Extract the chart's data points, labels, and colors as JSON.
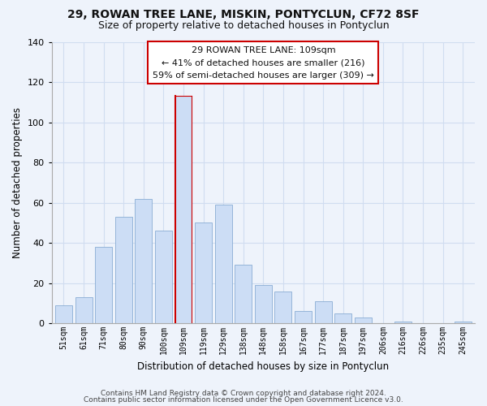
{
  "title": "29, ROWAN TREE LANE, MISKIN, PONTYCLUN, CF72 8SF",
  "subtitle": "Size of property relative to detached houses in Pontyclun",
  "xlabel": "Distribution of detached houses by size in Pontyclun",
  "ylabel": "Number of detached properties",
  "footer_line1": "Contains HM Land Registry data © Crown copyright and database right 2024.",
  "footer_line2": "Contains public sector information licensed under the Open Government Licence v3.0.",
  "bar_labels": [
    "51sqm",
    "61sqm",
    "71sqm",
    "80sqm",
    "90sqm",
    "100sqm",
    "109sqm",
    "119sqm",
    "129sqm",
    "138sqm",
    "148sqm",
    "158sqm",
    "167sqm",
    "177sqm",
    "187sqm",
    "197sqm",
    "206sqm",
    "216sqm",
    "226sqm",
    "235sqm",
    "245sqm"
  ],
  "bar_values": [
    9,
    13,
    38,
    53,
    62,
    46,
    113,
    50,
    59,
    29,
    19,
    16,
    6,
    11,
    5,
    3,
    0,
    1,
    0,
    0,
    1
  ],
  "highlight_index": 6,
  "bar_fill_color": "#ccddf5",
  "bar_edge_color": "#8aadd4",
  "highlight_edge_color": "#cc0000",
  "annotation_box_text_line1": "29 ROWAN TREE LANE: 109sqm",
  "annotation_box_text_line2": "← 41% of detached houses are smaller (216)",
  "annotation_box_text_line3": "59% of semi-detached houses are larger (309) →",
  "annotation_box_edge_color": "#cc0000",
  "annotation_box_bg": "#ffffff",
  "ylim": [
    0,
    140
  ],
  "yticks": [
    0,
    20,
    40,
    60,
    80,
    100,
    120,
    140
  ],
  "grid_color": "#d0ddf0",
  "bg_color": "#eef3fb",
  "plot_bg_color": "#eef3fb",
  "title_fontsize": 10,
  "subtitle_fontsize": 9
}
